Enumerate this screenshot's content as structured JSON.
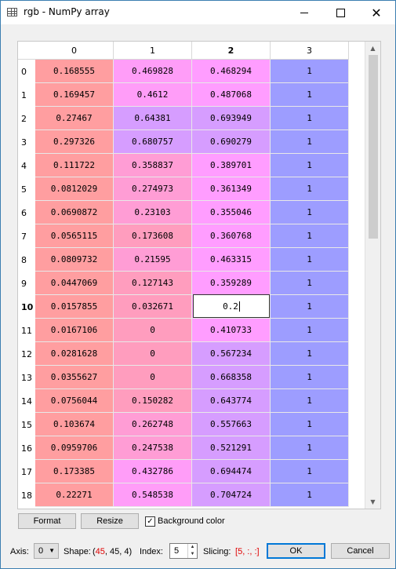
{
  "window": {
    "title": "rgb - NumPy array"
  },
  "table": {
    "columns": [
      "0",
      "1",
      "2",
      "3"
    ],
    "rows": [
      {
        "index": "0",
        "cells": [
          "0.168555",
          "0.469828",
          "0.468294",
          "1"
        ]
      },
      {
        "index": "1",
        "cells": [
          "0.169457",
          "0.4612",
          "0.487068",
          "1"
        ]
      },
      {
        "index": "2",
        "cells": [
          "0.27467",
          "0.64381",
          "0.693949",
          "1"
        ]
      },
      {
        "index": "3",
        "cells": [
          "0.297326",
          "0.680757",
          "0.690279",
          "1"
        ]
      },
      {
        "index": "4",
        "cells": [
          "0.111722",
          "0.358837",
          "0.389701",
          "1"
        ]
      },
      {
        "index": "5",
        "cells": [
          "0.0812029",
          "0.274973",
          "0.361349",
          "1"
        ]
      },
      {
        "index": "6",
        "cells": [
          "0.0690872",
          "0.23103",
          "0.355046",
          "1"
        ]
      },
      {
        "index": "7",
        "cells": [
          "0.0565115",
          "0.173608",
          "0.360768",
          "1"
        ]
      },
      {
        "index": "8",
        "cells": [
          "0.0809732",
          "0.21595",
          "0.463315",
          "1"
        ]
      },
      {
        "index": "9",
        "cells": [
          "0.0447069",
          "0.127143",
          "0.359289",
          "1"
        ]
      },
      {
        "index": "10",
        "cells": [
          "0.0157855",
          "0.032671",
          "0.2",
          "1"
        ]
      },
      {
        "index": "11",
        "cells": [
          "0.0167106",
          "0",
          "0.410733",
          "1"
        ]
      },
      {
        "index": "12",
        "cells": [
          "0.0281628",
          "0",
          "0.567234",
          "1"
        ]
      },
      {
        "index": "13",
        "cells": [
          "0.0355627",
          "0",
          "0.668358",
          "1"
        ]
      },
      {
        "index": "14",
        "cells": [
          "0.0756044",
          "0.150282",
          "0.643774",
          "1"
        ]
      },
      {
        "index": "15",
        "cells": [
          "0.103674",
          "0.262748",
          "0.557663",
          "1"
        ]
      },
      {
        "index": "16",
        "cells": [
          "0.0959706",
          "0.247538",
          "0.521291",
          "1"
        ]
      },
      {
        "index": "17",
        "cells": [
          "0.173385",
          "0.432786",
          "0.694474",
          "1"
        ]
      },
      {
        "index": "18",
        "cells": [
          "0.22271",
          "0.548538",
          "0.704724",
          "1"
        ]
      }
    ],
    "selected_row": "10",
    "selected_column": "2",
    "editing_value": "0.2"
  },
  "buttons": {
    "format": "Format",
    "resize": "Resize",
    "background_color": "Background color",
    "ok": "OK",
    "cancel": "Cancel"
  },
  "footer": {
    "axis_label": "Axis:",
    "axis_value": "0",
    "shape_label": "Shape:",
    "shape_open": "(",
    "shape_first": "45",
    "shape_rest": ", 45, 4)",
    "index_label": "Index:",
    "index_value": "5",
    "slicing_label": "Slicing:",
    "slicing_open": "[",
    "slicing_first": "5",
    "slicing_rest": ", :, :]"
  },
  "colors": {
    "col0": "#ff9ea0",
    "col1_high": "#ff9df8",
    "col1_mid": "#ff9dd5",
    "col1_low": "#ff9dbe",
    "col2_high": "#d69dff",
    "col2_low": "#ff9dff",
    "col3": "#9d9dff",
    "accent": "#0078d7"
  },
  "icons": [
    "table-icon",
    "minimize-icon",
    "maximize-icon",
    "close-icon",
    "scroll-up-icon",
    "scroll-down-icon",
    "checkbox-checked-icon",
    "dropdown-arrow-icon"
  ]
}
